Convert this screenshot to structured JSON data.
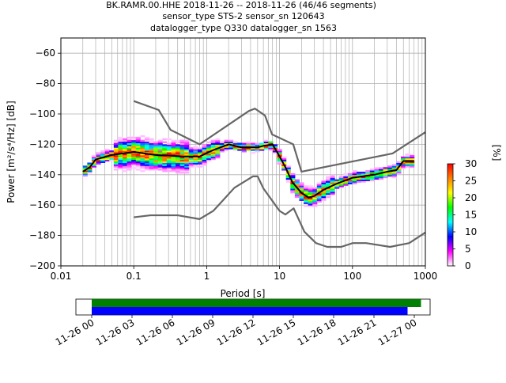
{
  "title_lines": [
    "BK.RAMR.00.HHE   2018-11-26 -- 2018-11-26  (46/46 segments)",
    "sensor_type STS-2 sensor_sn 120643",
    "datalogger_type Q330 datalogger_sn 1563"
  ],
  "chart_data": [
    {
      "type": "heatmap",
      "xlabel": "Period [s]",
      "ylabel": "Power [m²/s⁴/Hz] [dB]",
      "xscale": "log",
      "xlim": [
        0.01,
        1000
      ],
      "ylim": [
        -200,
        -50
      ],
      "grid": true,
      "xticks": [
        0.01,
        0.1,
        1,
        10,
        100,
        1000
      ],
      "xtick_labels": [
        "0.01",
        "0.1",
        "1",
        "10",
        "100",
        "1000"
      ],
      "yticks": [
        -200,
        -180,
        -160,
        -140,
        -120,
        -100,
        -80,
        -60
      ],
      "ytick_labels": [
        "−200",
        "−180",
        "−160",
        "−140",
        "−120",
        "−100",
        "−80",
        "−60"
      ],
      "colorbar": {
        "label": "[%]",
        "range": [
          0,
          30
        ],
        "ticks": [
          0,
          5,
          10,
          15,
          20,
          25,
          30
        ],
        "tick_labels": [
          "0",
          "5",
          "10",
          "15",
          "20",
          "25",
          "30"
        ],
        "colors": [
          "#ffffff",
          "#ff00ff",
          "#0000ff",
          "#00ffff",
          "#00ff00",
          "#ffff00",
          "#ff8000",
          "#ff0000"
        ]
      },
      "series": [
        {
          "role": "mode",
          "color": "#000000",
          "x": [
            0.02,
            0.025,
            0.03,
            0.05,
            0.1,
            0.2,
            0.5,
            0.8,
            1.2,
            2,
            3,
            5,
            6,
            8,
            10,
            12,
            15,
            20,
            25,
            30,
            40,
            60,
            100,
            200,
            300,
            400,
            500,
            700
          ],
          "y": [
            -138,
            -135,
            -130,
            -127,
            -125,
            -127,
            -128,
            -128,
            -124,
            -120,
            -122,
            -122,
            -121,
            -120,
            -128,
            -135,
            -145,
            -152,
            -155,
            -154,
            -150,
            -146,
            -142,
            -140,
            -138,
            -137,
            -131,
            -131
          ]
        },
        {
          "role": "noise_model_high",
          "color": "#666666",
          "x": [
            0.1,
            0.22,
            0.32,
            0.8,
            3.8,
            4.6,
            6.3,
            7.9,
            15.4,
            20,
            354.8,
            1000
          ],
          "y": [
            -91.5,
            -97.4,
            -110.5,
            -120,
            -98,
            -96.5,
            -101,
            -113.5,
            -120,
            -138,
            -126,
            -112
          ]
        },
        {
          "role": "noise_model_low",
          "color": "#666666",
          "x": [
            0.1,
            0.17,
            0.4,
            0.8,
            1.24,
            2.4,
            4.3,
            5,
            6,
            10,
            12,
            15.6,
            21.9,
            31.6,
            45,
            70,
            101,
            154,
            328,
            600,
            1000
          ],
          "y": [
            -168,
            -166.7,
            -166.7,
            -169.2,
            -163.7,
            -148.6,
            -141.1,
            -141.1,
            -149,
            -163.8,
            -166.2,
            -162.1,
            -177.5,
            -185,
            -187.5,
            -187.5,
            -185,
            -185,
            -187.5,
            -185,
            -178
          ]
        }
      ]
    },
    {
      "type": "timeline",
      "xlim": [
        "2018-11-26 00:00",
        "2018-11-27 00:00"
      ],
      "xticks": [
        "2018-11-26 00:00",
        "2018-11-26 03:00",
        "2018-11-26 06:00",
        "2018-11-26 09:00",
        "2018-11-26 12:00",
        "2018-11-26 15:00",
        "2018-11-26 18:00",
        "2018-11-26 21:00",
        "2018-11-27 00:00"
      ],
      "xtick_labels": [
        "11-26 00",
        "11-26 03",
        "11-26 06",
        "11-26 09",
        "11-26 12",
        "11-26 15",
        "11-26 18",
        "11-26 21",
        "11-27 00"
      ],
      "series": [
        {
          "role": "data_available",
          "color": "#008000",
          "start": "2018-11-26 00:00",
          "end": "2018-11-27 00:30"
        },
        {
          "role": "psd_used",
          "color": "#0000ff",
          "start": "2018-11-26 00:00",
          "end": "2018-11-26 23:30"
        }
      ]
    }
  ]
}
